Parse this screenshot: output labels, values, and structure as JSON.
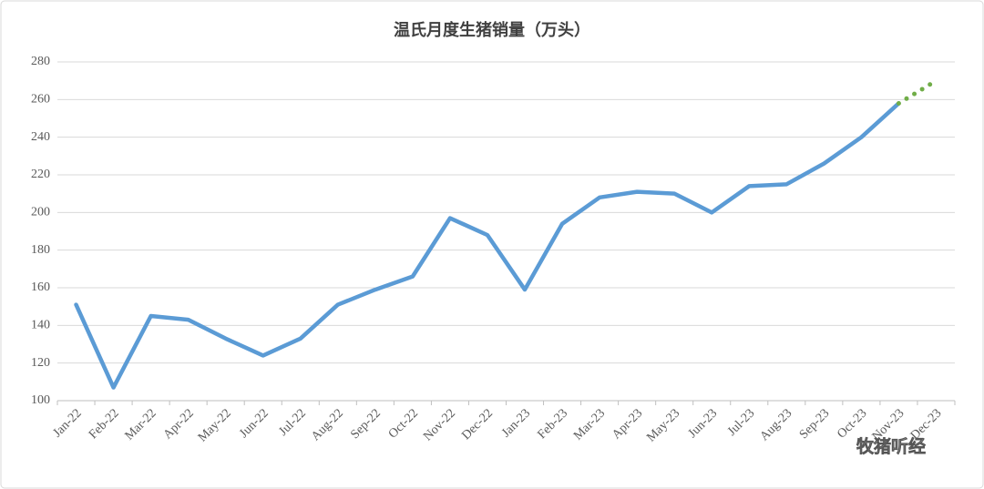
{
  "chart_data": {
    "type": "line",
    "title": "温氏月度生猪销量（万头）",
    "categories": [
      "Jan-22",
      "Feb-22",
      "Mar-22",
      "Apr-22",
      "May-22",
      "Jun-22",
      "Jul-22",
      "Aug-22",
      "Sep-22",
      "Oct-22",
      "Nov-22",
      "Dec-22",
      "Jan-23",
      "Feb-23",
      "Mar-23",
      "Apr-23",
      "May-23",
      "Jun-23",
      "Jul-23",
      "Aug-23",
      "Sep-23",
      "Oct-23",
      "Nov-23",
      "Dec-23"
    ],
    "series": [
      {
        "color": "#5b9bd5",
        "line_style": "solid",
        "values": [
          151,
          107,
          145,
          143,
          133,
          124,
          133,
          151,
          159,
          166,
          197,
          188,
          159,
          194,
          208,
          211,
          210,
          200,
          214,
          215,
          226,
          240,
          258,
          null
        ]
      },
      {
        "color": "#70ad47",
        "line_style": "dotted",
        "values": [
          null,
          null,
          null,
          null,
          null,
          null,
          null,
          null,
          null,
          null,
          null,
          null,
          null,
          null,
          null,
          null,
          null,
          null,
          null,
          null,
          null,
          null,
          258,
          270
        ]
      }
    ],
    "ylim": [
      100,
      280
    ],
    "yticks": [
      100,
      120,
      140,
      160,
      180,
      200,
      220,
      240,
      260,
      280
    ],
    "grid": true,
    "watermark": "牧猪听经"
  }
}
